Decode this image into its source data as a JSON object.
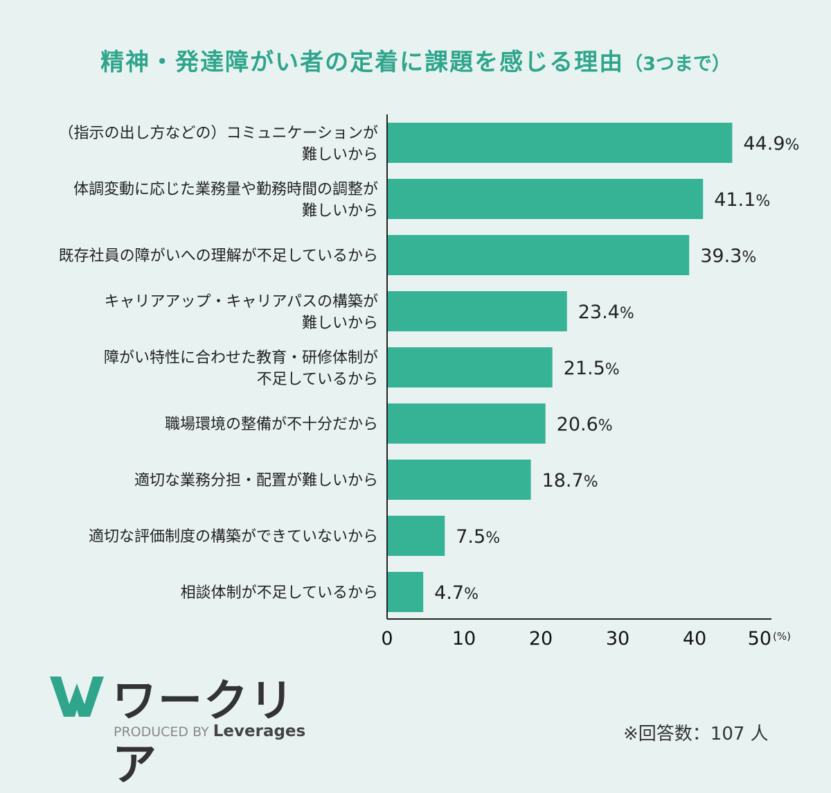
{
  "chart_data": {
    "type": "bar",
    "orientation": "horizontal",
    "title": "精神・発達障がい者の定着に課題を感じる理由",
    "subtitle": "（3つまで）",
    "categories": [
      [
        "（指示の出し方などの）コミュニケーションが",
        "難しいから"
      ],
      [
        "体調変動に応じた業務量や勤務時間の調整が",
        "難しいから"
      ],
      [
        "既存社員の障がいへの理解が不足しているから"
      ],
      [
        "キャリアアップ・キャリアパスの構築が",
        "難しいから"
      ],
      [
        "障がい特性に合わせた教育・研修体制が",
        "不足しているから"
      ],
      [
        "職場環境の整備が不十分だから"
      ],
      [
        "適切な業務分担・配置が難しいから"
      ],
      [
        "適切な評価制度の構築ができていないから"
      ],
      [
        "相談体制が不足しているから"
      ]
    ],
    "values": [
      44.9,
      41.1,
      39.3,
      23.4,
      21.5,
      20.6,
      18.7,
      7.5,
      4.7
    ],
    "value_suffix": "%",
    "xlim": [
      0,
      50
    ],
    "xticks": [
      "0",
      "10",
      "20",
      "30",
      "40",
      "50"
    ],
    "xunit": "(%)",
    "bar_color": "#36b394",
    "grid": false
  },
  "logo": {
    "name": "ワークリア",
    "tagline_prefix": "PRODUCED BY",
    "tagline_brand": "Leverages",
    "color": "#2fa58c"
  },
  "note": "※回答数：107 人"
}
